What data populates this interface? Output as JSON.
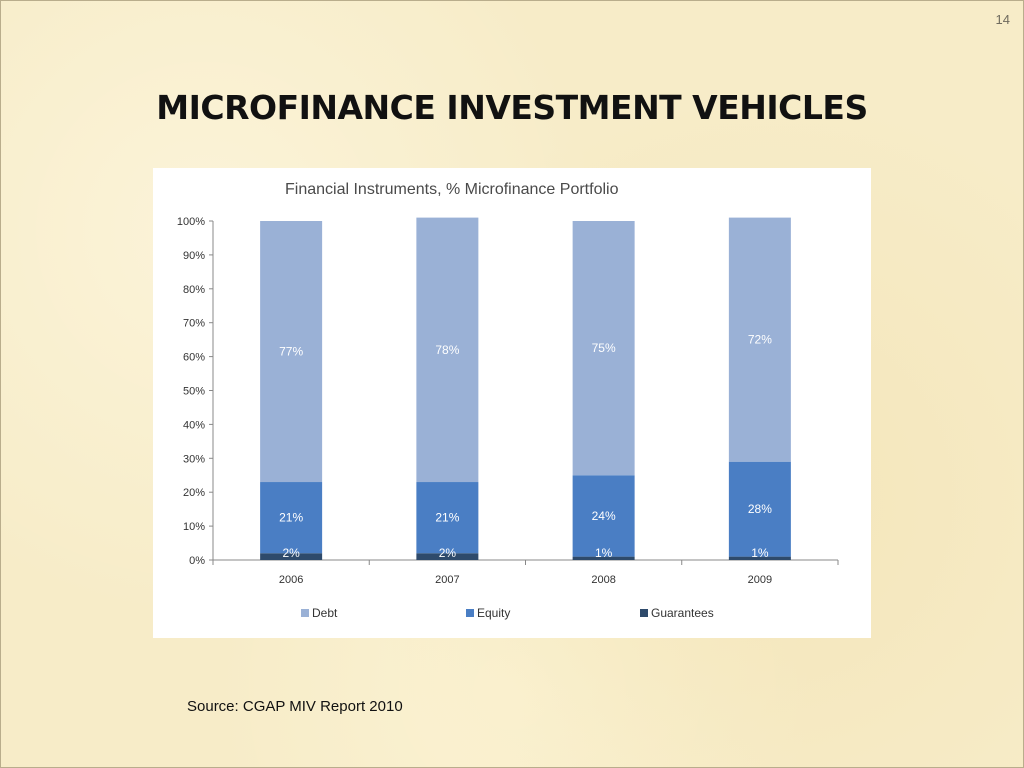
{
  "slide": {
    "number": "14",
    "title": "MICROFINANCE INVESTMENT VEHICLES",
    "source": "Source: CGAP MIV Report 2010"
  },
  "chart_data": {
    "type": "bar",
    "stacked": true,
    "title": "Financial Instruments, % Microfinance Portfolio",
    "categories": [
      "2006",
      "2007",
      "2008",
      "2009"
    ],
    "ylim": [
      0,
      100
    ],
    "yticks": [
      "0%",
      "10%",
      "20%",
      "30%",
      "40%",
      "50%",
      "60%",
      "70%",
      "80%",
      "90%",
      "100%"
    ],
    "series": [
      {
        "name": "Guarantees",
        "color": "#2e4a6b",
        "values": [
          2,
          2,
          1,
          1
        ],
        "labels": [
          "2%",
          "2%",
          "1%",
          "1%"
        ]
      },
      {
        "name": "Equity",
        "color": "#4a7ec4",
        "values": [
          21,
          21,
          24,
          28
        ],
        "labels": [
          "21%",
          "21%",
          "24%",
          "28%"
        ]
      },
      {
        "name": "Debt",
        "color": "#9ab1d6",
        "values": [
          77,
          78,
          75,
          72
        ],
        "labels": [
          "77%",
          "78%",
          "75%",
          "72%"
        ]
      }
    ],
    "legend": {
      "position": "bottom",
      "order": [
        "Debt",
        "Equity",
        "Guarantees"
      ]
    },
    "grid": false
  }
}
